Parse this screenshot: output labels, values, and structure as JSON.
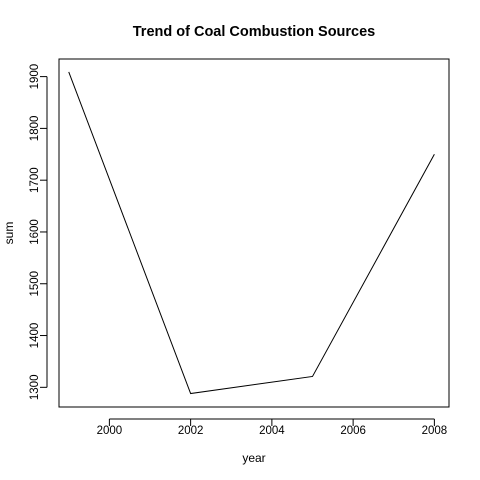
{
  "chart_data": {
    "type": "line",
    "title": "Trend of Coal Combustion Sources",
    "xlabel": "year",
    "ylabel": "sum",
    "x": [
      1999,
      2002,
      2005,
      2008
    ],
    "series": [
      {
        "values": [
          1909,
          1288,
          1321,
          1750
        ]
      }
    ],
    "xlim": [
      1998.76,
      2008.36
    ],
    "ylim": [
      1262,
      1934
    ],
    "xticks": [
      2000,
      2002,
      2004,
      2006,
      2008
    ],
    "yticks": [
      1300,
      1400,
      1500,
      1600,
      1700,
      1800,
      1900
    ],
    "xtick_labels": [
      "2000",
      "2002",
      "2004",
      "2006",
      "2008"
    ],
    "ytick_labels": [
      "1300",
      "1400",
      "1500",
      "1600",
      "1700",
      "1800",
      "1900"
    ],
    "grid": false,
    "legend": "none",
    "line_color": "#000000"
  }
}
